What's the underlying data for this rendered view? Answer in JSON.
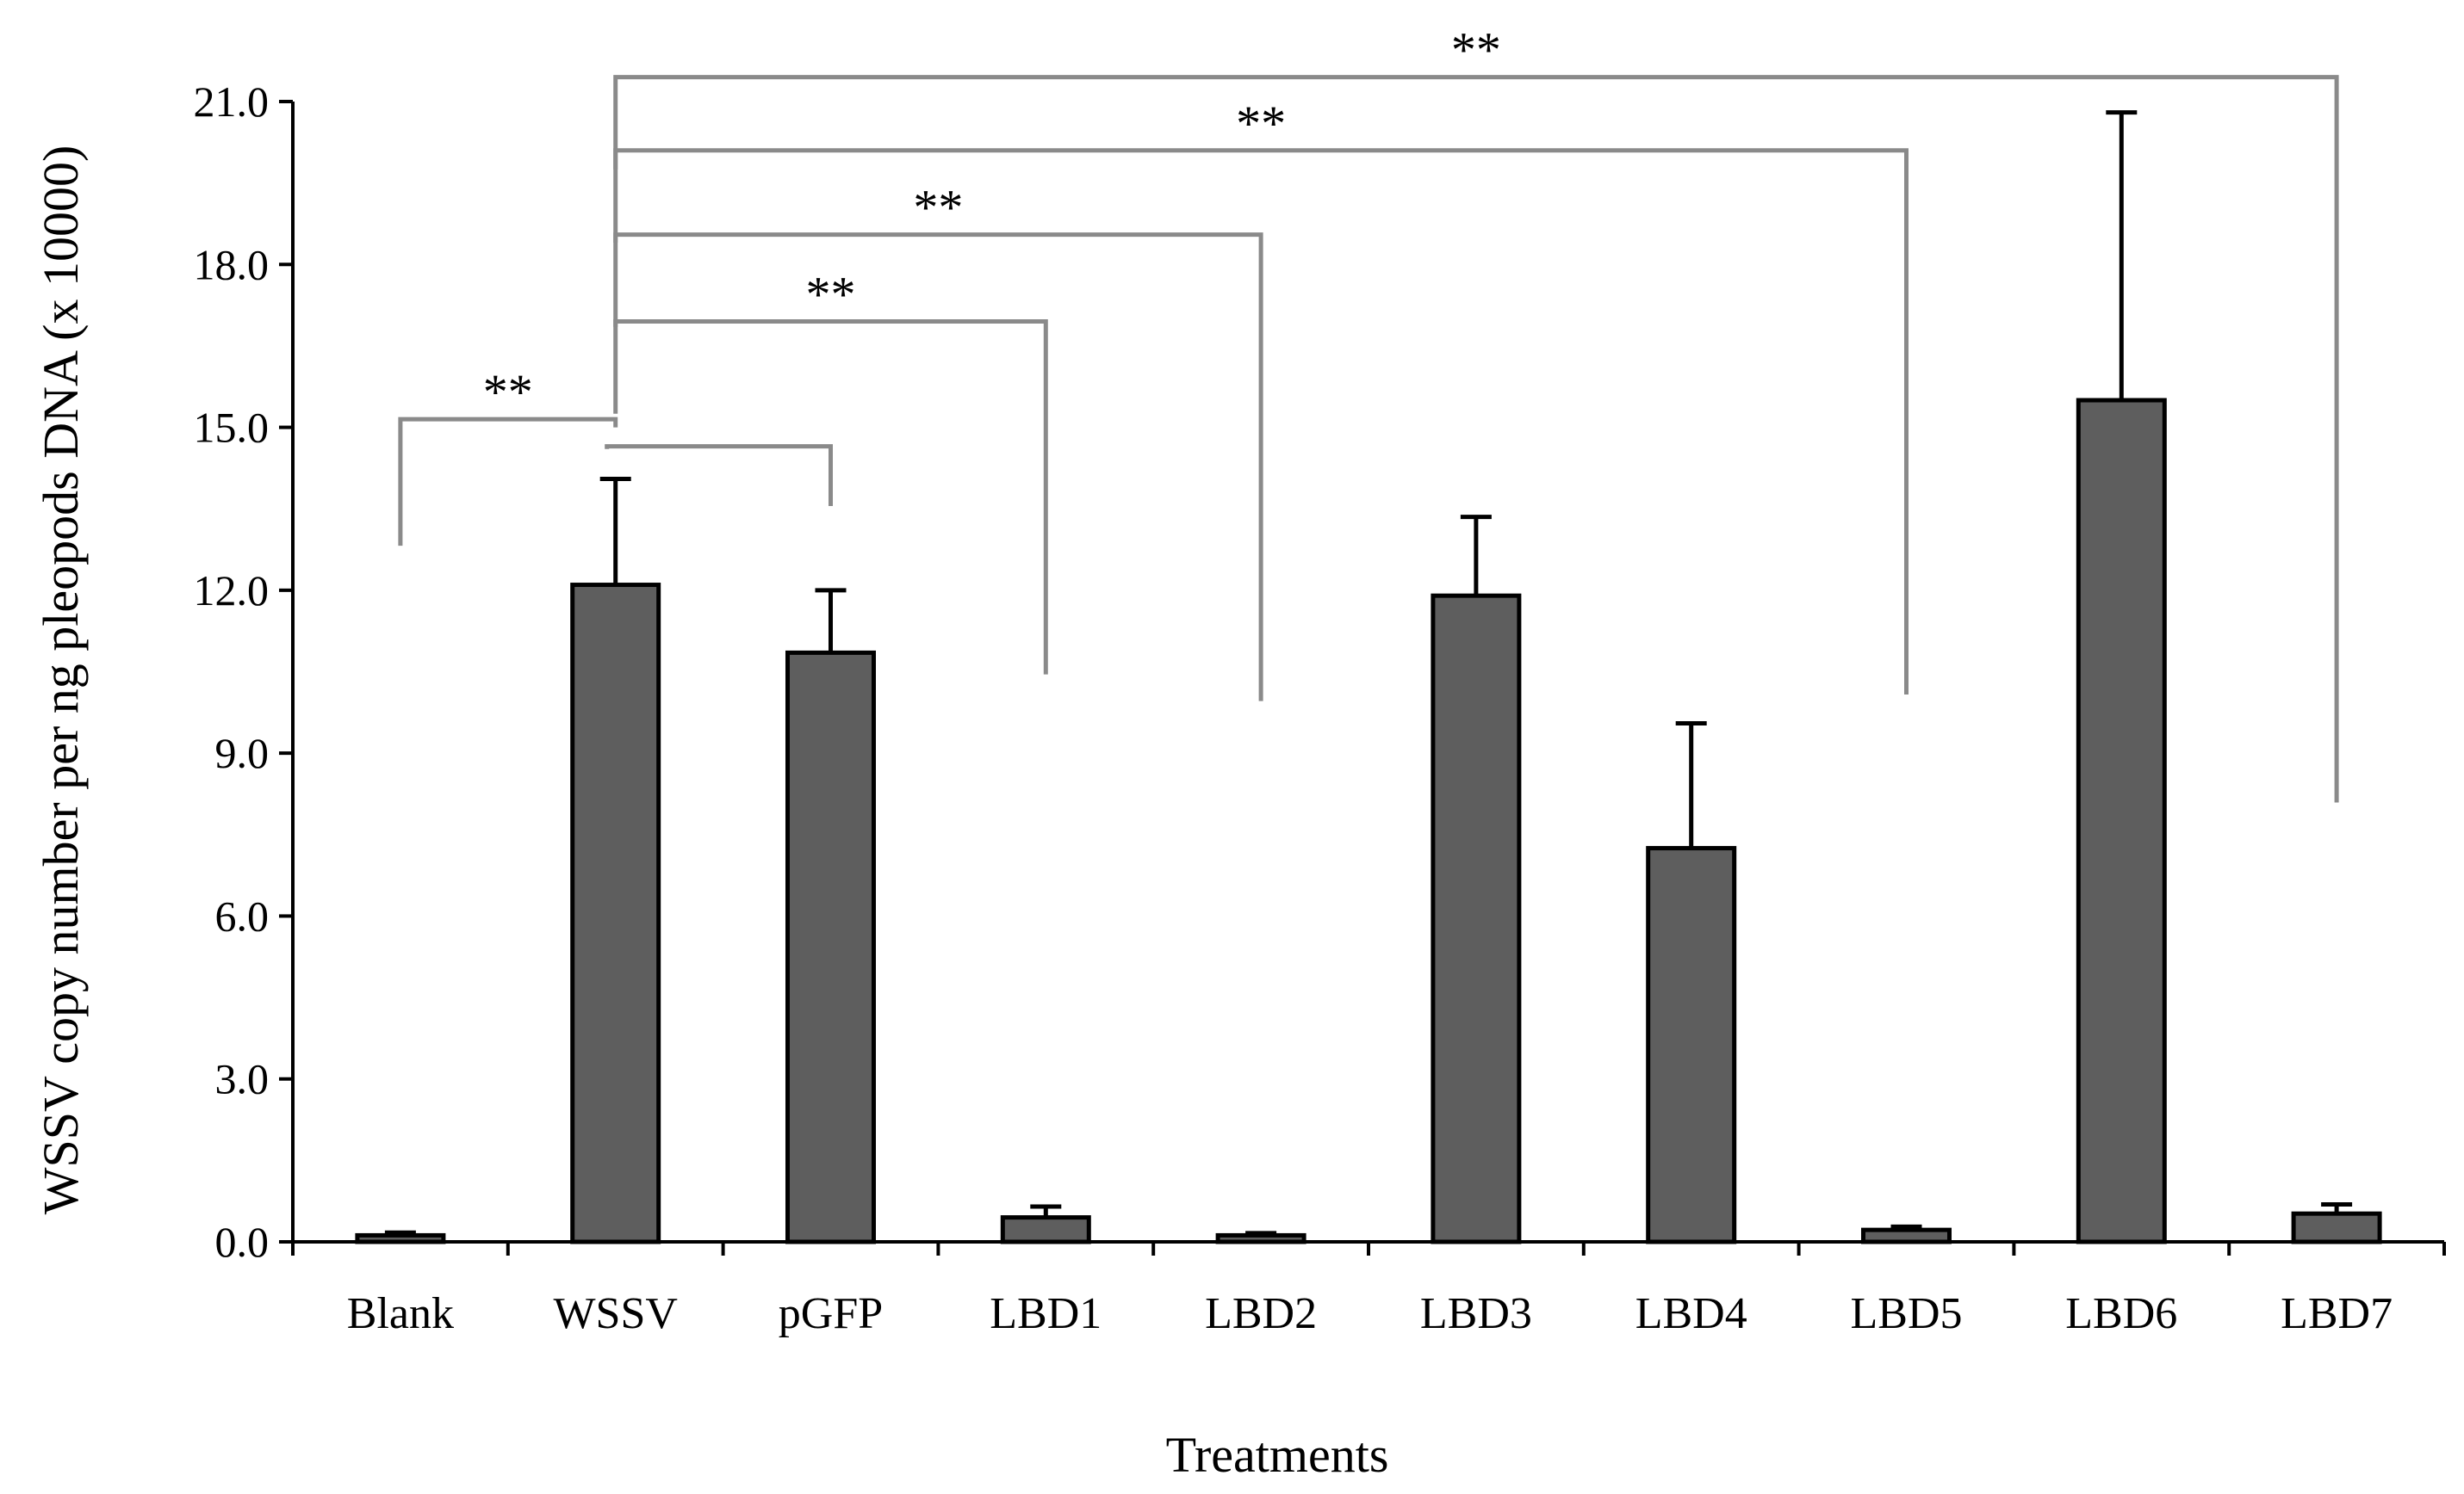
{
  "chart_data": {
    "type": "bar",
    "title": "",
    "xlabel": "Treatments",
    "ylabel": "WSSV copy number per ng pleopods DNA (x 10000)",
    "ylim": [
      0,
      21
    ],
    "yticks": [
      "0.0",
      "3.0",
      "6.0",
      "9.0",
      "12.0",
      "15.0",
      "18.0",
      "21.0"
    ],
    "grid": false,
    "legend": "none",
    "colors": {
      "bar": "#5e5e5e",
      "bracket": "#8a8a8a"
    },
    "categories": [
      "Blank",
      "WSSV",
      "pGFP",
      "LBD1",
      "LBD2",
      "LBD3",
      "LBD4",
      "LBD5",
      "LBD6",
      "LBD7"
    ],
    "values": [
      0.12,
      12.1,
      10.85,
      0.45,
      0.12,
      11.9,
      7.25,
      0.22,
      15.5,
      0.52
    ],
    "errors": [
      0.05,
      1.95,
      1.15,
      0.2,
      0.04,
      1.45,
      2.3,
      0.06,
      5.3,
      0.17
    ],
    "significance": [
      {
        "from": "Blank",
        "to": "WSSV",
        "label": "**"
      },
      {
        "from": "WSSV",
        "to": "pGFP",
        "label": ""
      },
      {
        "from": "WSSV",
        "to": "LBD1",
        "label": "**"
      },
      {
        "from": "WSSV",
        "to": "LBD2",
        "label": "**"
      },
      {
        "from": "WSSV",
        "to": "LBD5",
        "label": "**"
      },
      {
        "from": "WSSV",
        "to": "LBD7",
        "label": "**"
      }
    ]
  }
}
